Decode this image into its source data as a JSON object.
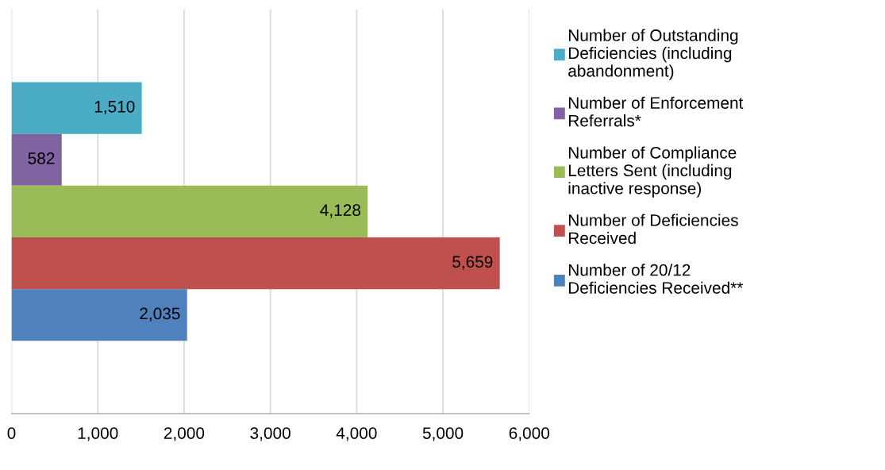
{
  "chart_data": {
    "type": "bar",
    "orientation": "horizontal",
    "categories": [
      null
    ],
    "series": [
      {
        "name": "Number of Outstanding Deficiencies (including abandonment)",
        "color": "#4bacc6",
        "values": [
          1510
        ],
        "value_labels": [
          "1,510"
        ]
      },
      {
        "name": "Number of Enforcement Referrals*",
        "color": "#8064a2",
        "values": [
          582
        ],
        "value_labels": [
          "582"
        ]
      },
      {
        "name": "Number of Compliance Letters Sent (including inactive response)",
        "color": "#9bbb59",
        "values": [
          4128
        ],
        "value_labels": [
          "4,128"
        ]
      },
      {
        "name": "Number of Deficiencies Received",
        "color": "#c0504d",
        "values": [
          5659
        ],
        "value_labels": [
          "5,659"
        ]
      },
      {
        "name": "Number of 20/12 Deficiencies Received**",
        "color": "#4f81bd",
        "values": [
          2035
        ],
        "value_labels": [
          "2,035"
        ]
      }
    ],
    "xlim": [
      0,
      6000
    ],
    "xticks": [
      0,
      {
        "value": 1000,
        "label": "1,000"
      },
      {
        "value": 2000,
        "label": "2,000"
      },
      {
        "value": 3000,
        "label": "3,000"
      },
      {
        "value": 4000,
        "label": "4,000"
      },
      {
        "value": 5000,
        "label": "5,000"
      },
      {
        "value": 6000,
        "label": "6,000"
      }
    ],
    "grid": "x",
    "legend": "right"
  }
}
